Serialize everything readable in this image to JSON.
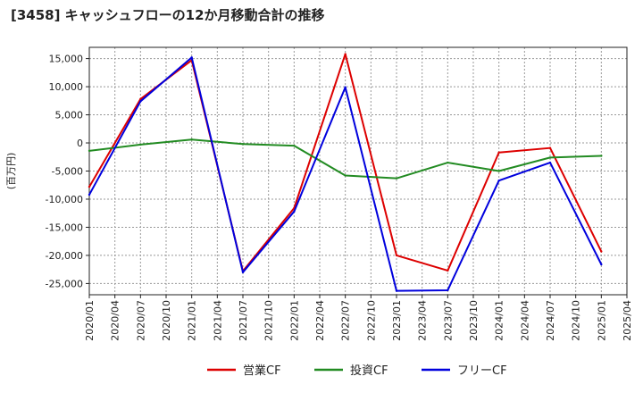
{
  "chart_data": {
    "type": "line",
    "title": "[3458]  キャッシュフローの12か月移動合計の推移",
    "ylabel": "(百万円)",
    "xlabel": "",
    "ylim": [
      -27000,
      17000
    ],
    "yticks": [
      15000,
      10000,
      5000,
      0,
      -5000,
      -10000,
      -15000,
      -20000,
      -25000
    ],
    "ytick_labels": [
      "15,000",
      "10,000",
      "5,000",
      "0",
      "-5,000",
      "-10,000",
      "-15,000",
      "-20,000",
      "-25,000"
    ],
    "categories": [
      "2020/01",
      "2020/04",
      "2020/07",
      "2020/10",
      "2021/01",
      "2021/04",
      "2021/07",
      "2021/10",
      "2022/01",
      "2022/04",
      "2022/07",
      "2022/10",
      "2023/01",
      "2023/04",
      "2023/07",
      "2023/10",
      "2024/01",
      "2024/04",
      "2024/07",
      "2024/10",
      "2025/01",
      "2025/04"
    ],
    "grid": true,
    "legend_position": "bottom",
    "series": [
      {
        "name": "営業CF",
        "color": "#dd0000",
        "points": [
          {
            "x": "2020/01",
            "y": -7800
          },
          {
            "x": "2020/07",
            "y": 7800
          },
          {
            "x": "2021/01",
            "y": 14700
          },
          {
            "x": "2021/07",
            "y": -22800
          },
          {
            "x": "2022/01",
            "y": -11600
          },
          {
            "x": "2022/07",
            "y": 15800
          },
          {
            "x": "2023/01",
            "y": -20000
          },
          {
            "x": "2023/07",
            "y": -22700
          },
          {
            "x": "2024/01",
            "y": -1700
          },
          {
            "x": "2024/07",
            "y": -900
          },
          {
            "x": "2025/01",
            "y": -19300
          }
        ]
      },
      {
        "name": "投資CF",
        "color": "#228b22",
        "points": [
          {
            "x": "2020/01",
            "y": -1400
          },
          {
            "x": "2020/07",
            "y": -300
          },
          {
            "x": "2021/01",
            "y": 600
          },
          {
            "x": "2021/07",
            "y": -200
          },
          {
            "x": "2022/01",
            "y": -500
          },
          {
            "x": "2022/07",
            "y": -5800
          },
          {
            "x": "2023/01",
            "y": -6300
          },
          {
            "x": "2023/07",
            "y": -3500
          },
          {
            "x": "2024/01",
            "y": -5000
          },
          {
            "x": "2024/07",
            "y": -2600
          },
          {
            "x": "2025/01",
            "y": -2300
          }
        ]
      },
      {
        "name": "フリーCF",
        "color": "#0000dd",
        "points": [
          {
            "x": "2020/01",
            "y": -9200
          },
          {
            "x": "2020/07",
            "y": 7400
          },
          {
            "x": "2021/01",
            "y": 15200
          },
          {
            "x": "2021/07",
            "y": -23000
          },
          {
            "x": "2022/01",
            "y": -12200
          },
          {
            "x": "2022/07",
            "y": 9900
          },
          {
            "x": "2023/01",
            "y": -26300
          },
          {
            "x": "2023/07",
            "y": -26200
          },
          {
            "x": "2024/01",
            "y": -6700
          },
          {
            "x": "2024/07",
            "y": -3500
          },
          {
            "x": "2025/01",
            "y": -21600
          }
        ]
      }
    ]
  }
}
